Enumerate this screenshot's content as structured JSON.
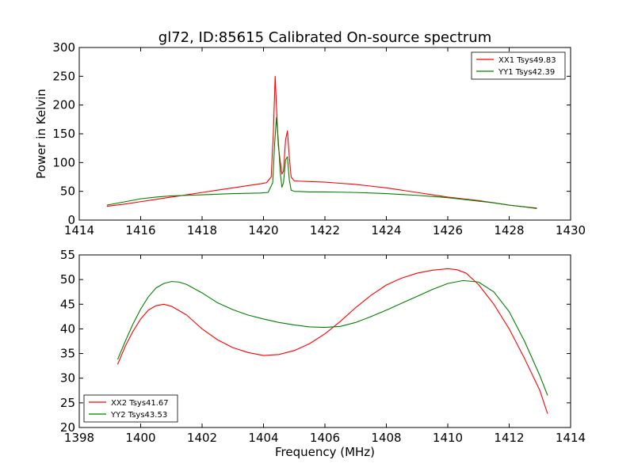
{
  "chart_data": [
    {
      "type": "line",
      "title": "gl72, ID:85615 Calibrated On-source spectrum",
      "xlabel": "",
      "ylabel": "Power in Kelvin",
      "xlim": [
        1414,
        1430
      ],
      "ylim": [
        0,
        300
      ],
      "xticks": [
        "1414",
        "1416",
        "1418",
        "1420",
        "1422",
        "1424",
        "1426",
        "1428",
        "1430"
      ],
      "yticks": [
        "0",
        "50",
        "100",
        "150",
        "200",
        "250",
        "300"
      ],
      "legend_position": "top-right",
      "grid": false,
      "series": [
        {
          "name": "XX1 Tsys49.83",
          "color": "#ff0000",
          "x": [
            1414.9,
            1415.5,
            1416.0,
            1416.5,
            1417.0,
            1417.5,
            1418.0,
            1418.5,
            1419.0,
            1419.5,
            1419.9,
            1420.1,
            1420.25,
            1420.32,
            1420.38,
            1420.42,
            1420.48,
            1420.55,
            1420.6,
            1420.65,
            1420.72,
            1420.78,
            1420.84,
            1420.9,
            1421.0,
            1421.5,
            1422.0,
            1422.5,
            1423.0,
            1423.5,
            1424.0,
            1424.5,
            1425.0,
            1425.5,
            1426.0,
            1426.5,
            1427.0,
            1427.5,
            1428.0,
            1428.5,
            1428.9
          ],
          "y": [
            24,
            28,
            32,
            36,
            40,
            44,
            48,
            52,
            56,
            60,
            63,
            65,
            75,
            150,
            250,
            200,
            130,
            100,
            80,
            85,
            140,
            155,
            110,
            75,
            68,
            67,
            66,
            64,
            62,
            59,
            56,
            52,
            48,
            44,
            40,
            37,
            34,
            30,
            26,
            23,
            21
          ]
        },
        {
          "name": "YY1 Tsys42.39",
          "color": "#008000",
          "x": [
            1414.9,
            1415.5,
            1416.0,
            1416.5,
            1417.0,
            1417.5,
            1418.0,
            1418.5,
            1419.0,
            1419.5,
            1419.9,
            1420.15,
            1420.3,
            1420.36,
            1420.42,
            1420.48,
            1420.55,
            1420.6,
            1420.65,
            1420.72,
            1420.78,
            1420.84,
            1420.9,
            1421.0,
            1421.5,
            1422.0,
            1422.5,
            1423.0,
            1423.5,
            1424.0,
            1424.5,
            1425.0,
            1425.5,
            1426.0,
            1426.5,
            1427.0,
            1427.5,
            1428.0,
            1428.5,
            1428.9
          ],
          "y": [
            26,
            32,
            37,
            40,
            42,
            43,
            44,
            45,
            46,
            46.5,
            47,
            48,
            65,
            130,
            178,
            140,
            80,
            57,
            65,
            105,
            110,
            70,
            52,
            50,
            49,
            49,
            48.5,
            48,
            47,
            46,
            44.5,
            43,
            41,
            39,
            36,
            33,
            30,
            26,
            23,
            20
          ]
        }
      ]
    },
    {
      "type": "line",
      "title": "",
      "xlabel": "Frequency (MHz)",
      "ylabel": "",
      "xlim": [
        1398,
        1414
      ],
      "ylim": [
        20,
        55
      ],
      "xticks": [
        "1398",
        "1400",
        "1402",
        "1404",
        "1406",
        "1408",
        "1410",
        "1412",
        "1414"
      ],
      "yticks": [
        "20",
        "25",
        "30",
        "35",
        "40",
        "45",
        "50",
        "55"
      ],
      "legend_position": "bottom-left",
      "grid": false,
      "series": [
        {
          "name": "XX2 Tsys41.67",
          "color": "#ff0000",
          "x": [
            1399.25,
            1399.5,
            1399.75,
            1400.0,
            1400.25,
            1400.5,
            1400.75,
            1401.0,
            1401.5,
            1402.0,
            1402.5,
            1403.0,
            1403.5,
            1404.0,
            1404.5,
            1405.0,
            1405.5,
            1406.0,
            1406.5,
            1407.0,
            1407.5,
            1408.0,
            1408.5,
            1409.0,
            1409.5,
            1410.0,
            1410.3,
            1410.6,
            1411.0,
            1411.5,
            1412.0,
            1412.5,
            1413.0,
            1413.25
          ],
          "y": [
            32.8,
            36.5,
            39.5,
            42.0,
            43.8,
            44.7,
            45.0,
            44.6,
            42.8,
            40.0,
            37.8,
            36.2,
            35.2,
            34.6,
            34.8,
            35.6,
            37.0,
            39.0,
            41.5,
            44.3,
            46.8,
            48.9,
            50.3,
            51.3,
            51.9,
            52.2,
            52.0,
            51.3,
            49.0,
            45.0,
            40.0,
            34.0,
            27.5,
            22.8
          ]
        },
        {
          "name": "YY2 Tsys43.53",
          "color": "#008000",
          "x": [
            1399.25,
            1399.5,
            1399.75,
            1400.0,
            1400.25,
            1400.5,
            1400.75,
            1401.0,
            1401.25,
            1401.5,
            1402.0,
            1402.5,
            1403.0,
            1403.5,
            1404.0,
            1404.5,
            1405.0,
            1405.5,
            1406.0,
            1406.5,
            1407.0,
            1407.5,
            1408.0,
            1408.5,
            1409.0,
            1409.5,
            1410.0,
            1410.5,
            1411.0,
            1411.5,
            1412.0,
            1412.5,
            1413.0,
            1413.25
          ],
          "y": [
            33.8,
            37.5,
            41.0,
            44.0,
            46.5,
            48.3,
            49.2,
            49.6,
            49.5,
            49.0,
            47.3,
            45.3,
            43.9,
            42.8,
            42.0,
            41.3,
            40.8,
            40.4,
            40.3,
            40.5,
            41.3,
            42.5,
            43.8,
            45.2,
            46.6,
            48.0,
            49.2,
            49.8,
            49.5,
            47.5,
            43.5,
            37.5,
            30.5,
            26.5
          ]
        }
      ]
    }
  ]
}
